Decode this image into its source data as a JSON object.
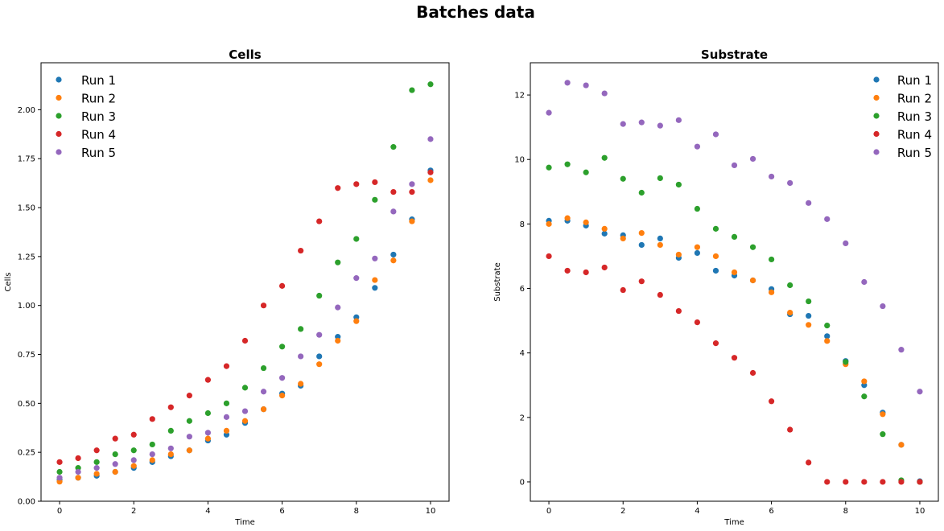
{
  "figure": {
    "suptitle": "Batches data"
  },
  "chart_data": [
    {
      "type": "scatter",
      "title": "Cells",
      "xlabel": "Time",
      "ylabel": "Cells",
      "xlim": [
        -0.5,
        10.5
      ],
      "ylim": [
        0.0,
        2.24
      ],
      "xticks": [
        0,
        2,
        4,
        6,
        8,
        10
      ],
      "yticks": [
        0.0,
        0.25,
        0.5,
        0.75,
        1.0,
        1.25,
        1.5,
        1.75,
        2.0
      ],
      "ytick_labels": [
        "0.00",
        "0.25",
        "0.50",
        "0.75",
        "1.00",
        "1.25",
        "1.50",
        "1.75",
        "2.00"
      ],
      "grid": false,
      "legend": "upper-left",
      "x": [
        0,
        0.5,
        1,
        1.5,
        2,
        2.5,
        3,
        3.5,
        4,
        4.5,
        5,
        5.5,
        6,
        6.5,
        7,
        7.5,
        8,
        8.5,
        9,
        9.5,
        10
      ],
      "series": [
        {
          "name": "Run 1",
          "color": "#1f77b4",
          "values": [
            0.11,
            0.12,
            0.13,
            0.15,
            0.17,
            0.2,
            0.23,
            0.26,
            0.31,
            0.34,
            0.4,
            0.47,
            0.55,
            0.59,
            0.74,
            0.84,
            0.94,
            1.09,
            1.26,
            1.44,
            1.69
          ]
        },
        {
          "name": "Run 2",
          "color": "#ff7f0e",
          "values": [
            0.1,
            0.12,
            0.14,
            0.15,
            0.18,
            0.21,
            0.24,
            0.26,
            0.32,
            0.36,
            0.41,
            0.47,
            0.54,
            0.6,
            0.7,
            0.82,
            0.92,
            1.13,
            1.23,
            1.43,
            1.64
          ]
        },
        {
          "name": "Run 3",
          "color": "#2ca02c",
          "values": [
            0.15,
            0.17,
            0.2,
            0.24,
            0.26,
            0.29,
            0.36,
            0.41,
            0.45,
            0.5,
            0.58,
            0.68,
            0.79,
            0.88,
            1.05,
            1.22,
            1.34,
            1.54,
            1.81,
            2.1,
            2.13
          ]
        },
        {
          "name": "Run 4",
          "color": "#d62728",
          "values": [
            0.2,
            0.22,
            0.26,
            0.32,
            0.34,
            0.42,
            0.48,
            0.54,
            0.62,
            0.69,
            0.82,
            1.0,
            1.1,
            1.28,
            1.43,
            1.6,
            1.62,
            1.63,
            1.58,
            1.58,
            1.68
          ]
        },
        {
          "name": "Run 5",
          "color": "#9467bd",
          "values": [
            0.12,
            0.15,
            0.17,
            0.19,
            0.21,
            0.24,
            0.27,
            0.33,
            0.35,
            0.43,
            0.46,
            0.56,
            0.63,
            0.74,
            0.85,
            0.99,
            1.14,
            1.24,
            1.48,
            1.62,
            1.85
          ]
        }
      ]
    },
    {
      "type": "scatter",
      "title": "Substrate",
      "xlabel": "Time",
      "ylabel": "Substrate",
      "xlim": [
        -0.5,
        10.5
      ],
      "ylim": [
        -0.6,
        13.0
      ],
      "xticks": [
        0,
        2,
        4,
        6,
        8,
        10
      ],
      "yticks": [
        0,
        2,
        4,
        6,
        8,
        10,
        12
      ],
      "ytick_labels": [
        "0",
        "2",
        "4",
        "6",
        "8",
        "10",
        "12"
      ],
      "grid": false,
      "legend": "upper-right",
      "x": [
        0,
        0.5,
        1,
        1.5,
        2,
        2.5,
        3,
        3.5,
        4,
        4.5,
        5,
        5.5,
        6,
        6.5,
        7,
        7.5,
        8,
        8.5,
        9,
        9.5,
        10
      ],
      "series": [
        {
          "name": "Run 1",
          "color": "#1f77b4",
          "values": [
            8.1,
            8.1,
            7.95,
            7.7,
            7.65,
            7.35,
            7.55,
            6.95,
            7.1,
            6.55,
            6.4,
            6.25,
            5.98,
            5.2,
            5.15,
            4.52,
            3.75,
            3.0,
            2.15,
            1.15,
            0.02
          ]
        },
        {
          "name": "Run 2",
          "color": "#ff7f0e",
          "values": [
            8.0,
            8.18,
            8.05,
            7.85,
            7.55,
            7.72,
            7.35,
            7.05,
            7.28,
            7.0,
            6.5,
            6.25,
            5.88,
            5.25,
            4.87,
            4.37,
            3.65,
            3.12,
            2.1,
            1.15,
            0.0
          ]
        },
        {
          "name": "Run 3",
          "color": "#2ca02c",
          "values": [
            9.75,
            9.85,
            9.6,
            10.05,
            9.4,
            8.97,
            9.42,
            9.22,
            8.47,
            7.85,
            7.6,
            7.28,
            6.9,
            6.1,
            5.6,
            4.85,
            3.72,
            2.65,
            1.48,
            0.05,
            0.0
          ]
        },
        {
          "name": "Run 4",
          "color": "#d62728",
          "values": [
            7.0,
            6.55,
            6.5,
            6.65,
            5.95,
            6.22,
            5.8,
            5.3,
            4.95,
            4.3,
            3.85,
            3.38,
            2.5,
            1.62,
            0.6,
            0.0,
            0.0,
            0.0,
            0.0,
            0.0,
            0.0
          ]
        },
        {
          "name": "Run 5",
          "color": "#9467bd",
          "values": [
            11.45,
            12.38,
            12.3,
            12.05,
            11.1,
            11.15,
            11.05,
            11.22,
            10.4,
            10.78,
            9.82,
            10.02,
            9.47,
            9.27,
            8.65,
            8.15,
            7.4,
            6.2,
            5.45,
            4.1,
            2.8
          ]
        }
      ]
    }
  ]
}
